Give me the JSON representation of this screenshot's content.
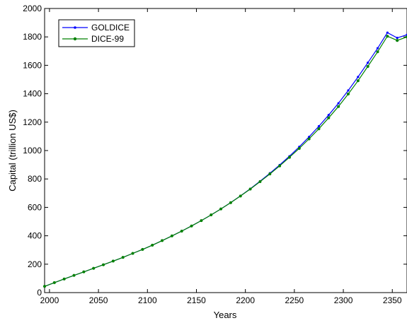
{
  "chart_data": {
    "type": "line",
    "xlabel": "Years",
    "ylabel": "Capital (trillion US$)",
    "xlim": [
      1995,
      2365
    ],
    "ylim": [
      0,
      2000
    ],
    "xticks": [
      2000,
      2050,
      2100,
      2150,
      2200,
      2250,
      2300,
      2350
    ],
    "yticks": [
      0,
      200,
      400,
      600,
      800,
      1000,
      1200,
      1400,
      1600,
      1800,
      2000
    ],
    "grid": false,
    "legend": "top-left",
    "x": [
      1995,
      2005,
      2015,
      2025,
      2035,
      2045,
      2055,
      2065,
      2075,
      2085,
      2095,
      2105,
      2115,
      2125,
      2135,
      2145,
      2155,
      2165,
      2175,
      2185,
      2195,
      2205,
      2215,
      2225,
      2235,
      2245,
      2255,
      2265,
      2275,
      2285,
      2295,
      2305,
      2315,
      2325,
      2335,
      2345,
      2355,
      2365
    ],
    "series": [
      {
        "name": "GOLDICE",
        "color": "#0000ff",
        "marker": "dot",
        "values": [
          44,
          70,
          96,
          121,
          146,
          171,
          196,
          222,
          248,
          276,
          304,
          334,
          366,
          399,
          433,
          469,
          507,
          547,
          589,
          634,
          681,
          731,
          784,
          840,
          898,
          960,
          1026,
          1096,
          1171,
          1250,
          1333,
          1423,
          1518,
          1618,
          1720,
          1830,
          1793,
          1815
        ]
      },
      {
        "name": "DICE-99",
        "color": "#008000",
        "marker": "star",
        "values": [
          44,
          70,
          96,
          121,
          146,
          171,
          196,
          222,
          248,
          276,
          304,
          334,
          366,
          399,
          433,
          469,
          507,
          547,
          589,
          633,
          680,
          729,
          781,
          835,
          892,
          952,
          1015,
          1082,
          1153,
          1230,
          1310,
          1398,
          1491,
          1592,
          1695,
          1805,
          1775,
          1800
        ]
      }
    ]
  }
}
